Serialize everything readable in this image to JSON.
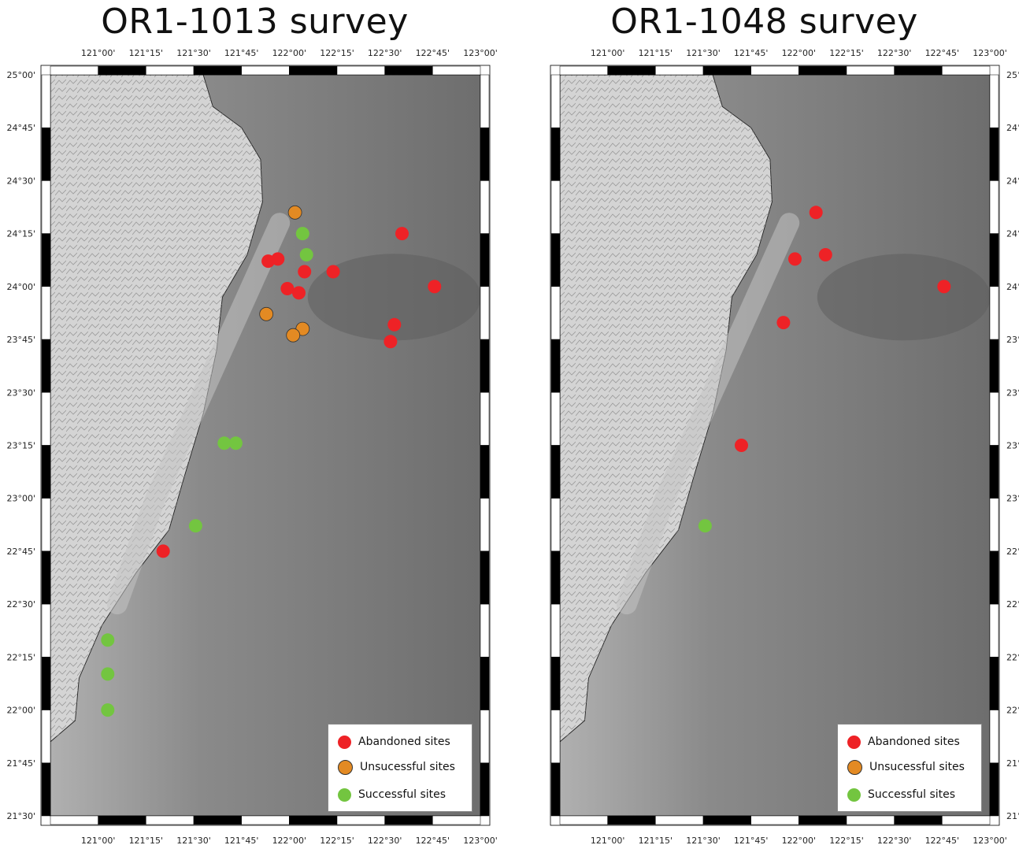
{
  "figure": {
    "maps": [
      {
        "title": "OR1-1013 survey",
        "sites": [
          {
            "category": "unsuccessful",
            "lon": 122.03,
            "lat": 24.35
          },
          {
            "category": "successful",
            "lon": 122.07,
            "lat": 24.25
          },
          {
            "category": "successful",
            "lon": 122.09,
            "lat": 24.15
          },
          {
            "category": "abandoned",
            "lon": 122.59,
            "lat": 24.25
          },
          {
            "category": "abandoned",
            "lon": 121.89,
            "lat": 24.12
          },
          {
            "category": "abandoned",
            "lon": 121.94,
            "lat": 24.13
          },
          {
            "category": "abandoned",
            "lon": 122.08,
            "lat": 24.07
          },
          {
            "category": "abandoned",
            "lon": 122.23,
            "lat": 24.07
          },
          {
            "category": "abandoned",
            "lon": 121.99,
            "lat": 23.99
          },
          {
            "category": "abandoned",
            "lon": 122.05,
            "lat": 23.97
          },
          {
            "category": "abandoned",
            "lon": 122.76,
            "lat": 24.0
          },
          {
            "category": "unsuccessful",
            "lon": 121.88,
            "lat": 23.87
          },
          {
            "category": "abandoned",
            "lon": 122.55,
            "lat": 23.82
          },
          {
            "category": "unsuccessful",
            "lon": 122.07,
            "lat": 23.8
          },
          {
            "category": "unsuccessful",
            "lon": 122.02,
            "lat": 23.77
          },
          {
            "category": "abandoned",
            "lon": 122.53,
            "lat": 23.74
          },
          {
            "category": "successful",
            "lon": 121.66,
            "lat": 23.26
          },
          {
            "category": "successful",
            "lon": 121.72,
            "lat": 23.26
          },
          {
            "category": "successful",
            "lon": 121.51,
            "lat": 22.87
          },
          {
            "category": "abandoned",
            "lon": 121.34,
            "lat": 22.75
          },
          {
            "category": "successful",
            "lon": 121.05,
            "lat": 22.33
          },
          {
            "category": "successful",
            "lon": 121.05,
            "lat": 22.17
          },
          {
            "category": "successful",
            "lon": 121.05,
            "lat": 22.0
          }
        ]
      },
      {
        "title": "OR1-1048 survey",
        "sites": [
          {
            "category": "abandoned",
            "lon": 122.09,
            "lat": 24.35
          },
          {
            "category": "abandoned",
            "lon": 121.98,
            "lat": 24.13
          },
          {
            "category": "abandoned",
            "lon": 122.14,
            "lat": 24.15
          },
          {
            "category": "abandoned",
            "lon": 122.76,
            "lat": 24.0
          },
          {
            "category": "abandoned",
            "lon": 121.92,
            "lat": 23.83
          },
          {
            "category": "abandoned",
            "lon": 121.7,
            "lat": 23.25
          },
          {
            "category": "successful",
            "lon": 121.51,
            "lat": 22.87
          }
        ]
      }
    ],
    "lon_ticks": [
      "121°00'",
      "121°15'",
      "121°30'",
      "121°45'",
      "122°00'",
      "122°15'",
      "122°30'",
      "122°45'",
      "123°00'"
    ],
    "lat_ticks": [
      "25°00'",
      "24°45'",
      "24°30'",
      "24°15'",
      "24°00'",
      "23°45'",
      "23°30'",
      "23°15'",
      "23°00'",
      "22°45'",
      "22°30'",
      "22°15'",
      "22°00'",
      "21°45'",
      "21°30'"
    ],
    "extent": {
      "lon": [
        120.75,
        123.0
      ],
      "lat": [
        21.5,
        25.0
      ]
    },
    "legend": [
      {
        "key": "abandoned",
        "label": "Abandoned sites",
        "color": "#ee2226"
      },
      {
        "key": "unsuccessful",
        "label": "Unsucessful sites",
        "color": "#e38a23"
      },
      {
        "key": "successful",
        "label": "Successful sites",
        "color": "#73c540"
      }
    ],
    "colors": {
      "land": "#d4d4d4",
      "sea_shallow": "#b0b0b0",
      "sea_deep": "#6e6e6e",
      "frame": "#000000"
    }
  }
}
